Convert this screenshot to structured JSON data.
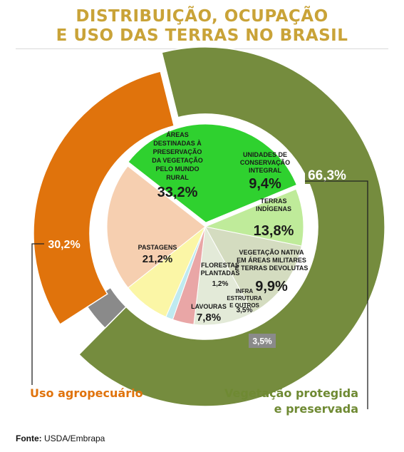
{
  "title": {
    "line1": "DISTRIBUIÇÃO, OCUPAÇÃO",
    "line2": "E USO DAS TERRAS NO BRASIL"
  },
  "colors": {
    "title": "#c9a338",
    "green_dark": "#758c3e",
    "orange": "#e0730c",
    "gray": "#8a8a8a",
    "green_bright": "#2fd12f",
    "light_green": "#bfeb9a",
    "sage": "#d4dcc0",
    "pale_green": "#e3ead8",
    "pink": "#e9a6a6",
    "yellow": "#fbf6a6",
    "peach": "#f6cfb0"
  },
  "chart_data": {
    "type": "pie",
    "inner": {
      "slices": [
        {
          "label_lines": [
            "ÁREAS",
            "DESTINADAS À",
            "PRESERVAÇÃO",
            "DA VEGETAÇÃO",
            "PELO MUNDO",
            "RURAL"
          ],
          "value": 33.2,
          "value_label": "33,2%",
          "color": "#2fd12f"
        },
        {
          "label_lines": [
            "UNIDADES DE",
            "CONSERVAÇÃO",
            "INTEGRAL"
          ],
          "value": 9.4,
          "value_label": "9,4%",
          "color": "#bfeb9a"
        },
        {
          "label_lines": [
            "TERRAS",
            "INDÍGENAS"
          ],
          "value": 13.8,
          "value_label": "13,8%",
          "color": "#d4dcc0"
        },
        {
          "label_lines": [
            "VEGETAÇÃO NATIVA",
            "EM ÁREAS MILITARES",
            "E TERRAS DEVOLUTAS"
          ],
          "value": 9.9,
          "value_label": "9,9%",
          "color": "#e3ead8"
        },
        {
          "label_lines": [
            "INFRA",
            "ESTRUTURA",
            "E OUTROS"
          ],
          "value": 3.5,
          "value_label": "3,5%",
          "color": "#e9a6a6"
        },
        {
          "label_lines": [
            "FLORESTAS",
            "PLANTADAS"
          ],
          "value": 1.2,
          "value_label": "1,2%",
          "color": "#bfeaf0"
        },
        {
          "label_lines": [
            "LAVOURAS"
          ],
          "value": 7.8,
          "value_label": "7,8%",
          "color": "#fbf6a6"
        },
        {
          "label_lines": [
            "PASTAGENS"
          ],
          "value": 21.2,
          "value_label": "21,2%",
          "color": "#f6cfb0"
        }
      ]
    },
    "outer": {
      "segments": [
        {
          "name": "Vegetação protegida e preservada",
          "value": 66.3,
          "value_label": "66,3%",
          "color": "#758c3e"
        },
        {
          "name": "",
          "value": 3.5,
          "value_label": "3,5%",
          "color": "#8a8a8a"
        },
        {
          "name": "Uso agropecuário",
          "value": 30.2,
          "value_label": "30,2%",
          "color": "#e0730c"
        }
      ]
    }
  },
  "legend": {
    "left": "Uso agropecuário",
    "right_line1": "Vegetação protegida",
    "right_line2": "e preservada"
  },
  "source": {
    "prefix": "Fonte:",
    "text": " USDA/Embrapa"
  }
}
